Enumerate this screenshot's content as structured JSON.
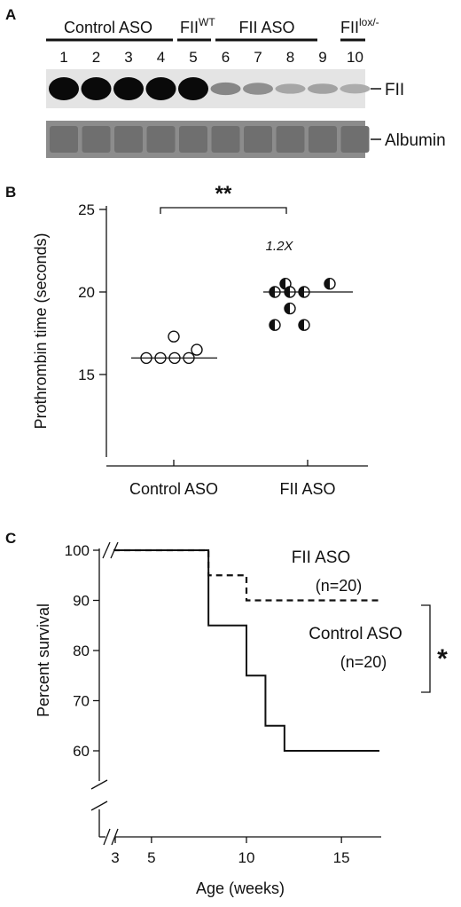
{
  "panel_a": {
    "label": "A",
    "groups": [
      {
        "name": "Control ASO",
        "sup": ""
      },
      {
        "name": "FII",
        "sup": "WT"
      },
      {
        "name": "FII ASO",
        "sup": ""
      },
      {
        "name": "FII",
        "sup": "lox/-"
      }
    ],
    "lanes": [
      "1",
      "2",
      "3",
      "4",
      "5",
      "6",
      "7",
      "8",
      "9",
      "10"
    ],
    "blot_labels": [
      "FII",
      "Albumin"
    ],
    "fii_band_intensity": [
      1.0,
      1.0,
      1.0,
      1.0,
      1.0,
      0.35,
      0.3,
      0.18,
      0.2,
      0.15
    ]
  },
  "panel_b": {
    "label": "B",
    "significance": "**",
    "fold_annotation": "1.2X",
    "chart_data": {
      "type": "scatter",
      "ylabel": "Prothrombin time (seconds)",
      "categories": [
        "Control ASO",
        "FII ASO"
      ],
      "ylim": [
        10,
        25
      ],
      "yticks": [
        15,
        20,
        25
      ],
      "series": [
        {
          "name": "Control ASO",
          "values": [
            16.0,
            16.0,
            16.0,
            16.0,
            16.5,
            17.3
          ],
          "median": 16.0
        },
        {
          "name": "FII ASO",
          "values": [
            20.5,
            20.5,
            20.0,
            20.0,
            20.0,
            19.0,
            18.0,
            18.0
          ],
          "median": 20.0
        }
      ]
    }
  },
  "panel_c": {
    "label": "C",
    "significance": "*",
    "chart_data": {
      "type": "line",
      "xlabel": "Age (weeks)",
      "ylabel": "Percent survival",
      "xlim": [
        3,
        17
      ],
      "xticks": [
        3,
        5,
        10,
        15
      ],
      "ylim": [
        60,
        100
      ],
      "yticks": [
        60,
        70,
        80,
        90,
        100
      ],
      "series": [
        {
          "name": "FII ASO",
          "n_label": "(n=20)",
          "style": "dashed",
          "x": [
            3,
            8,
            9.7,
            10,
            17
          ],
          "y": [
            100,
            95,
            95,
            90,
            90
          ]
        },
        {
          "name": "Control ASO",
          "n_label": "(n=20)",
          "style": "solid",
          "x": [
            3,
            8,
            10,
            11,
            12,
            17
          ],
          "y": [
            100,
            85,
            75,
            65,
            60,
            60
          ]
        }
      ]
    }
  }
}
